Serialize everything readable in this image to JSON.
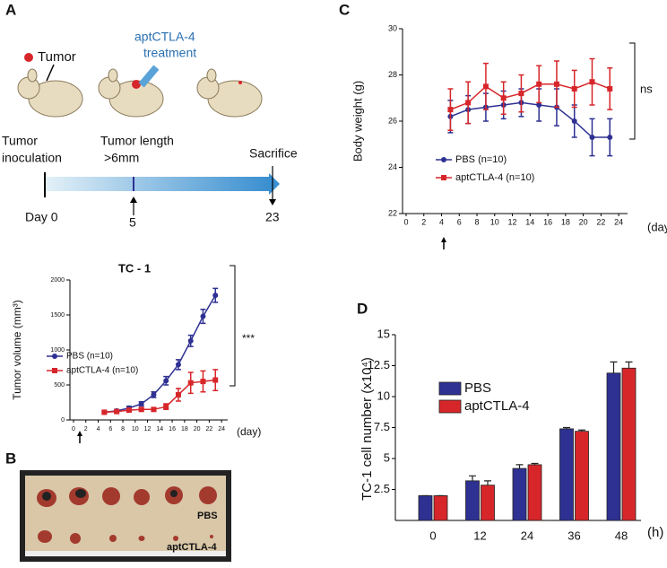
{
  "panel_labels": [
    "A",
    "B",
    "C",
    "D"
  ],
  "timeline": {
    "tumor_label": "Tumor",
    "treatment": [
      "aptCTLA-4",
      "treatment"
    ],
    "steps": [
      {
        "label": [
          "Tumor",
          "inoculation"
        ],
        "day": "Day 0"
      },
      {
        "label": [
          "Tumor length",
          ">6mm"
        ],
        "day": "5"
      },
      {
        "label": [
          "Sacrifice"
        ],
        "day": "23"
      }
    ]
  },
  "photo": {
    "labels": [
      "PBS",
      "aptCTLA-4"
    ]
  },
  "chart_data": [
    {
      "type": "line",
      "title": "TC - 1",
      "ylabel": "Tumor volume (mm³)",
      "xlabel": "(day)",
      "x": [
        5,
        7,
        9,
        11,
        13,
        15,
        17,
        19,
        21,
        23
      ],
      "xlim": [
        0,
        25
      ],
      "xticks": [
        0,
        2,
        4,
        6,
        8,
        10,
        12,
        14,
        16,
        18,
        20,
        22,
        24
      ],
      "ylim": [
        0,
        2000
      ],
      "yticks": [
        0,
        500,
        1000,
        1500,
        2000
      ],
      "series": [
        {
          "name": "PBS (n=10)",
          "color": "#2e3192",
          "values": [
            110,
            130,
            170,
            230,
            360,
            560,
            790,
            1130,
            1480,
            1780
          ],
          "errors": [
            20,
            20,
            25,
            30,
            40,
            60,
            70,
            80,
            100,
            100
          ]
        },
        {
          "name": "aptCTLA-4 (n=10)",
          "color": "#d7262a",
          "values": [
            110,
            120,
            140,
            150,
            150,
            190,
            360,
            530,
            550,
            570
          ],
          "errors": [
            20,
            20,
            20,
            20,
            25,
            40,
            90,
            150,
            150,
            150
          ]
        }
      ],
      "annotation": "***"
    },
    {
      "type": "line",
      "ylabel": "Body weight (g)",
      "xlabel": "(day)",
      "x": [
        5,
        7,
        9,
        11,
        13,
        15,
        17,
        19,
        21,
        23
      ],
      "xlim": [
        0,
        25
      ],
      "xticks": [
        0,
        2,
        4,
        6,
        8,
        10,
        12,
        14,
        16,
        18,
        20,
        22,
        24
      ],
      "ylim": [
        22,
        30
      ],
      "yticks": [
        22,
        24,
        26,
        28,
        30
      ],
      "series": [
        {
          "name": "PBS (n=10)",
          "color": "#2e3192",
          "values": [
            26.2,
            26.5,
            26.6,
            26.7,
            26.8,
            26.7,
            26.6,
            26.0,
            25.3,
            25.3
          ],
          "errors": [
            0.7,
            0.6,
            0.6,
            0.6,
            0.6,
            0.7,
            0.8,
            0.7,
            0.8,
            0.8
          ]
        },
        {
          "name": "aptCTLA-4 (n=10)",
          "color": "#d7262a",
          "values": [
            26.5,
            26.8,
            27.5,
            27.0,
            27.2,
            27.6,
            27.6,
            27.4,
            27.7,
            27.4
          ],
          "errors": [
            0.9,
            0.9,
            1.0,
            0.7,
            0.8,
            0.8,
            1.0,
            0.8,
            1.0,
            0.9
          ]
        }
      ],
      "annotation": "ns"
    },
    {
      "type": "bar",
      "ylabel": "TC-1 cell number (x10⁴)",
      "xlabel": "(h)",
      "categories": [
        "0",
        "12",
        "24",
        "36",
        "48"
      ],
      "ylim": [
        0,
        15
      ],
      "yticks": [
        2.5,
        5,
        7.5,
        10,
        12.5,
        15
      ],
      "series": [
        {
          "name": "PBS",
          "color": "#2e3192",
          "values": [
            2,
            3.2,
            4.2,
            7.4,
            11.9
          ],
          "errors": [
            0,
            0.4,
            0.3,
            0.1,
            0.9
          ]
        },
        {
          "name": "aptCTLA-4",
          "color": "#d7262a",
          "values": [
            2,
            2.85,
            4.5,
            7.2,
            12.3
          ],
          "errors": [
            0,
            0.35,
            0.1,
            0.1,
            0.5
          ]
        }
      ]
    }
  ]
}
